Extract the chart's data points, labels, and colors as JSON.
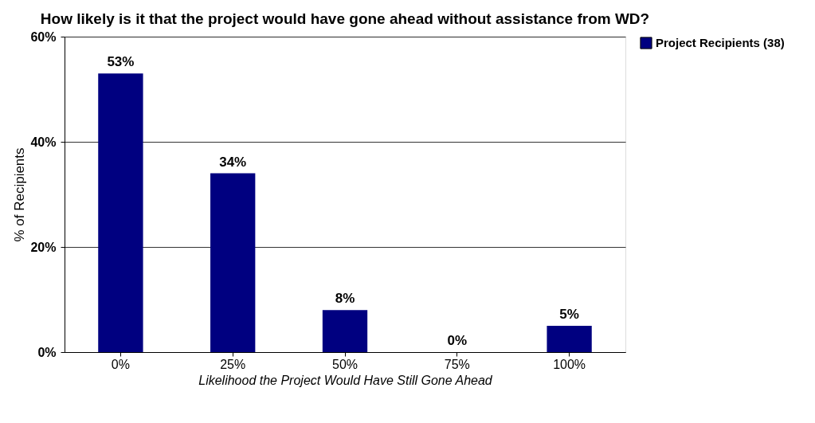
{
  "chart_data": {
    "type": "bar",
    "title": "How likely is it that the project  would have gone ahead without assistance from WD?",
    "xlabel": "Likelihood the Project Would Have Still Gone Ahead",
    "ylabel": "% of Recipients",
    "categories": [
      "0%",
      "25%",
      "50%",
      "75%",
      "100%"
    ],
    "series": [
      {
        "name": "Project Recipients (38)",
        "color": "#000080",
        "values": [
          53,
          34,
          8,
          0,
          5
        ],
        "value_labels": [
          "53%",
          "34%",
          "8%",
          "0%",
          "5%"
        ]
      }
    ],
    "ylim": [
      0,
      60
    ],
    "yticks": [
      {
        "value": 0,
        "label": "0%"
      },
      {
        "value": 20,
        "label": "20%"
      },
      {
        "value": 40,
        "label": "40%"
      },
      {
        "value": 60,
        "label": "60%"
      }
    ],
    "grid": "y",
    "legend": "right"
  }
}
